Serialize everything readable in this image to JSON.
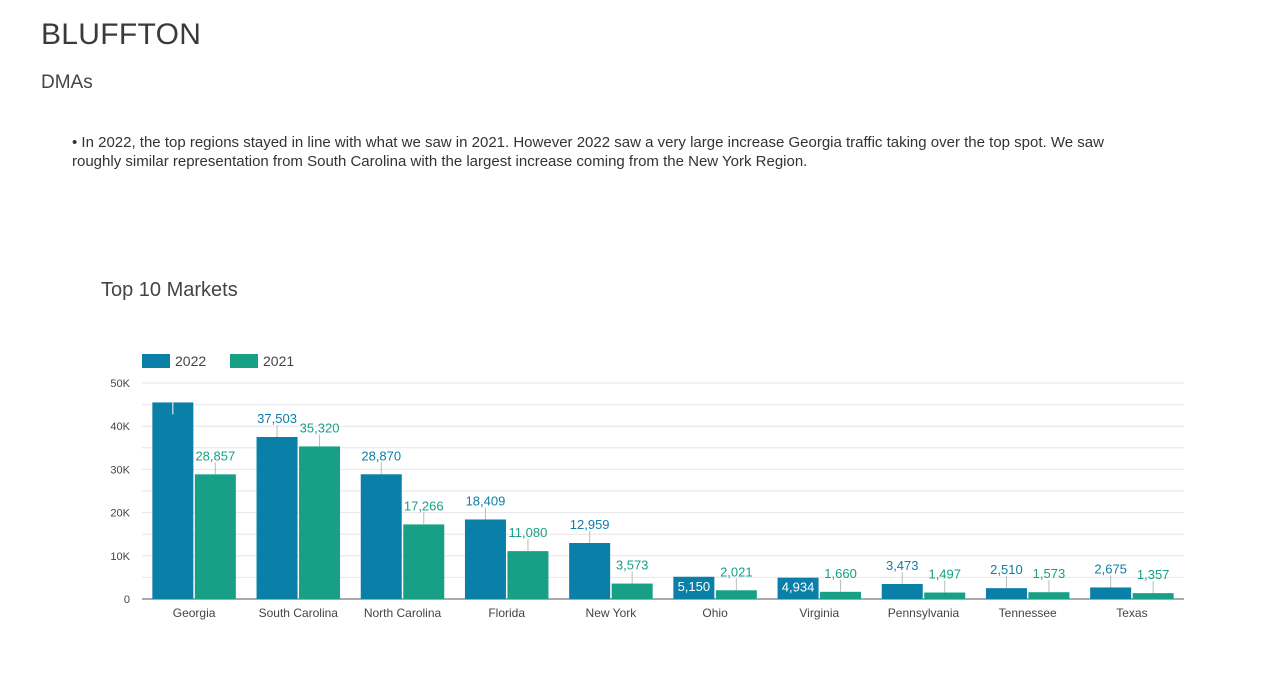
{
  "header": {
    "title": "BLUFFTON",
    "section": "DMAs"
  },
  "summary": "• In 2022, the top regions stayed in line with what we saw in 2021. However 2022 saw a very large increase Georgia traffic taking over the top spot. We saw roughly similar representation from South Carolina with the largest increase coming from the New York Region.",
  "chart_title": "Top 10 Markets",
  "chart_data": {
    "type": "bar",
    "title": "Top 10 Markets",
    "categories": [
      "Georgia",
      "South Carolina",
      "North Carolina",
      "Florida",
      "New York",
      "Ohio",
      "Virginia",
      "Pennsylvania",
      "Tennessee",
      "Texas"
    ],
    "series": [
      {
        "name": "2022",
        "color": "#0a7fa8",
        "values": [
          45500,
          37503,
          28870,
          18409,
          12959,
          5150,
          4934,
          3473,
          2510,
          2675
        ],
        "labels": [
          "",
          "37,503",
          "28,870",
          "18,409",
          "12,959",
          "5,150",
          "4,934",
          "3,473",
          "2,510",
          "2,675"
        ]
      },
      {
        "name": "2021",
        "color": "#17a085",
        "values": [
          28857,
          35320,
          17266,
          11080,
          3573,
          2021,
          1660,
          1497,
          1573,
          1357
        ],
        "labels": [
          "28,857",
          "35,320",
          "17,266",
          "11,080",
          "3,573",
          "2,021",
          "1,660",
          "1,497",
          "1,573",
          "1,357"
        ]
      }
    ],
    "yticks": [
      0,
      10000,
      20000,
      30000,
      40000,
      50000
    ],
    "ytick_labels": [
      "0",
      "10K",
      "20K",
      "30K",
      "40K",
      "50K"
    ],
    "ylim": [
      0,
      50000
    ],
    "grid": true,
    "legend": "top-left"
  }
}
